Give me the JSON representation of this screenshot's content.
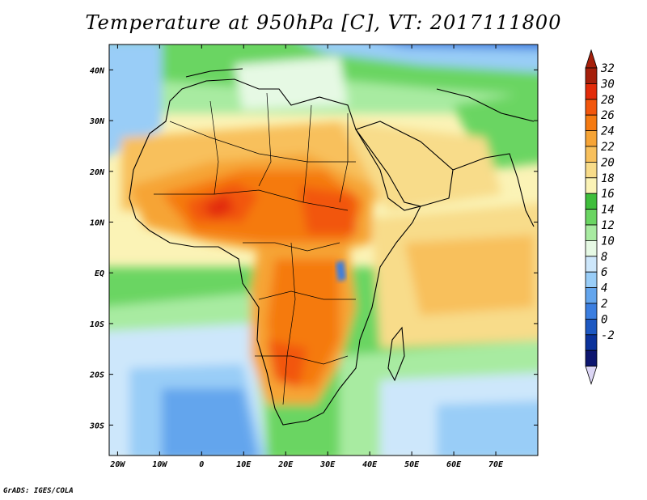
{
  "title": "Temperature at 950hPa [C], VT: 2017111800",
  "credit": "GrADS: IGES/COLA",
  "map": {
    "lon_range": [
      -22,
      80
    ],
    "lat_range": [
      -36,
      45
    ],
    "x_ticks": [
      "20W",
      "10W",
      "0",
      "10E",
      "20E",
      "30E",
      "40E",
      "50E",
      "60E",
      "70E"
    ],
    "x_tick_values": [
      -20,
      -10,
      0,
      10,
      20,
      30,
      40,
      50,
      60,
      70
    ],
    "y_ticks": [
      "40N",
      "30N",
      "20N",
      "10N",
      "EQ",
      "10S",
      "20S",
      "30S"
    ],
    "y_tick_values": [
      40,
      30,
      20,
      10,
      0,
      -10,
      -20,
      -30
    ]
  },
  "colorbar": {
    "levels": [
      "32",
      "30",
      "28",
      "26",
      "24",
      "22",
      "20",
      "18",
      "16",
      "14",
      "12",
      "10",
      "8",
      "6",
      "4",
      "2",
      "0",
      "-2"
    ],
    "colors": [
      "#a51f0b",
      "#e22b09",
      "#f2560c",
      "#f57a11",
      "#f6a436",
      "#f8c05c",
      "#f8dc8a",
      "#fbf3b6",
      "#3fbe3b",
      "#6ad562",
      "#a8eba1",
      "#e6f9e4",
      "#cde7fb",
      "#99cdf7",
      "#63a5ed",
      "#3b7ee0",
      "#1d58c2",
      "#0b329b",
      "#0d166f"
    ],
    "bottom_arrow_color": "#dcd6f5",
    "top_arrow_color": "#a51f0b"
  }
}
